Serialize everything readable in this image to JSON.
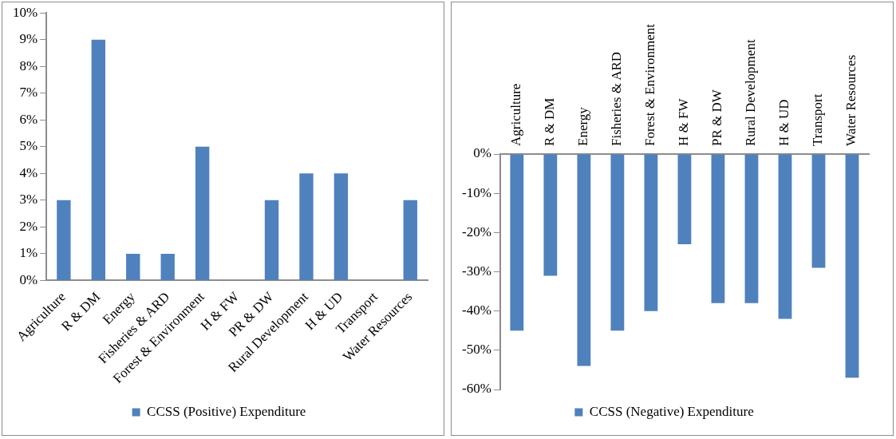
{
  "chart_data": [
    {
      "type": "bar",
      "categories": [
        "Agriculture",
        "R & DM",
        "Energy",
        "Fisheries & ARD",
        "Forest & Environment",
        "H & FW",
        "PR & DW",
        "Rural Development",
        "H & UD",
        "Transport",
        "Water Resources"
      ],
      "series": [
        {
          "name": "CCSS (Positive) Expenditure",
          "color": "#4f81bd",
          "values": [
            3,
            9,
            1,
            1,
            5,
            0,
            3,
            4,
            4,
            0,
            3
          ]
        }
      ],
      "ylim": [
        0,
        10
      ],
      "yticks": [
        {
          "value": 0,
          "label": "0%"
        },
        {
          "value": 1,
          "label": "1%"
        },
        {
          "value": 2,
          "label": "2%"
        },
        {
          "value": 3,
          "label": "3%"
        },
        {
          "value": 4,
          "label": "4%"
        },
        {
          "value": 5,
          "label": "5%"
        },
        {
          "value": 6,
          "label": "6%"
        },
        {
          "value": 7,
          "label": "7%"
        },
        {
          "value": 8,
          "label": "8%"
        },
        {
          "value": 9,
          "label": "9%"
        },
        {
          "value": 10,
          "label": "10%"
        }
      ],
      "grid": false,
      "legend": "bottom"
    },
    {
      "type": "bar",
      "categories": [
        "Agriculture",
        "R & DM",
        "Energy",
        "Fisheries & ARD",
        "Forest & Environment",
        "H & FW",
        "PR & DW",
        "Rural Development",
        "H & UD",
        "Transport",
        "Water Resources"
      ],
      "series": [
        {
          "name": "CCSS (Negative) Expenditure",
          "color": "#4f81bd",
          "values": [
            -45,
            -31,
            -54,
            -45,
            -40,
            -23,
            -38,
            -38,
            -42,
            -29,
            -57
          ]
        }
      ],
      "ylim": [
        -60,
        0
      ],
      "yticks": [
        {
          "value": -60,
          "label": "-60%"
        },
        {
          "value": -50,
          "label": "-50%"
        },
        {
          "value": -40,
          "label": "-40%"
        },
        {
          "value": -30,
          "label": "-30%"
        },
        {
          "value": -20,
          "label": "-20%"
        },
        {
          "value": -10,
          "label": "-10%"
        },
        {
          "value": 0,
          "label": "0%"
        }
      ],
      "grid": false,
      "legend": "bottom"
    }
  ]
}
